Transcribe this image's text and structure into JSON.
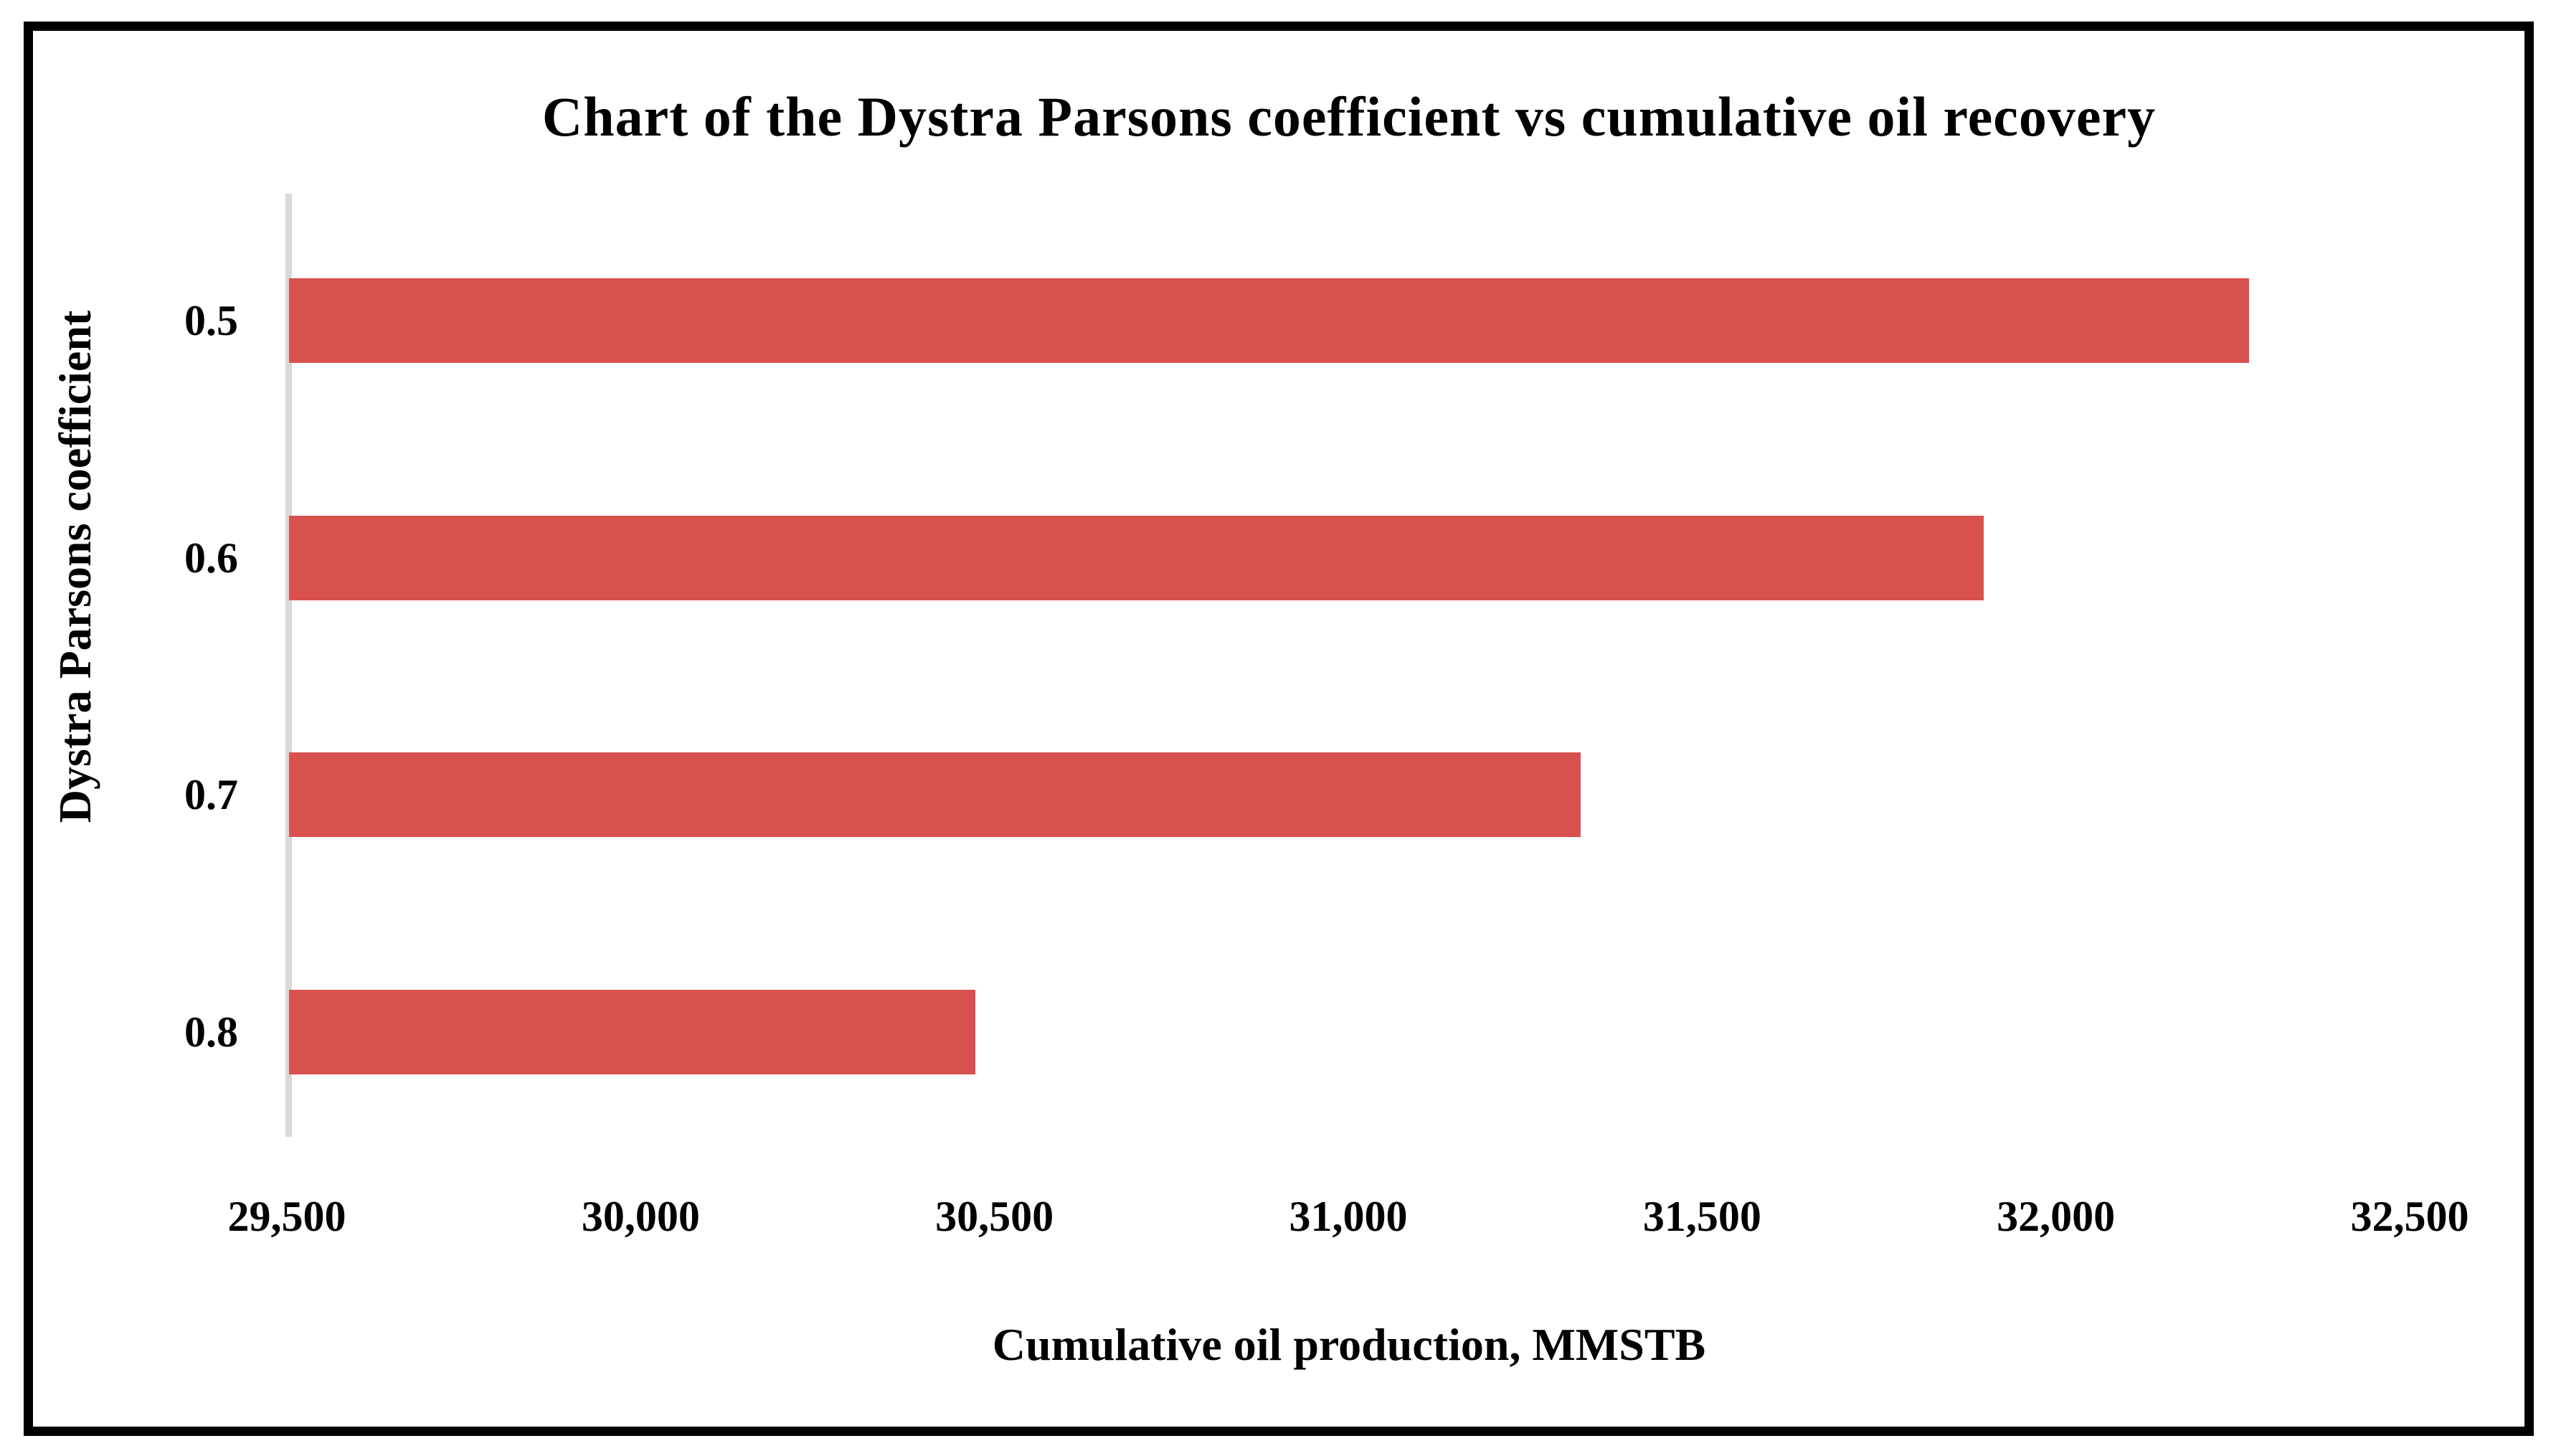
{
  "figure": {
    "title": "Chart of the Dystra Parsons coefficient vs cumulative oil recovery",
    "x_axis_title": "Cumulative oil production, MMSTB",
    "y_axis_title": "Dystra Parsons coefficient"
  },
  "colors": {
    "bar": "#d9514f",
    "axis_line": "#d9d9d9",
    "border": "#000000",
    "text": "#000000",
    "background": "#ffffff"
  },
  "chart_data": {
    "type": "bar",
    "orientation": "horizontal",
    "title": "Chart of the Dystra Parsons coefficient vs cumulative oil recovery",
    "xlabel": "Cumulative oil production, MMSTB",
    "ylabel": "Dystra Parsons coefficient",
    "categories": [
      "0.5",
      "0.6",
      "0.7",
      "0.8"
    ],
    "values": [
      32270,
      31895,
      31325,
      30470
    ],
    "xlim": [
      29500,
      32500
    ],
    "xtick_values": [
      29500,
      30000,
      30500,
      31000,
      31500,
      32000,
      32500
    ],
    "xtick_labels": [
      "29,500",
      "30,000",
      "30,500",
      "31,000",
      "31,500",
      "32,000",
      "32,500"
    ],
    "grid": false,
    "legend": false,
    "bar_color": "#d9514f"
  }
}
